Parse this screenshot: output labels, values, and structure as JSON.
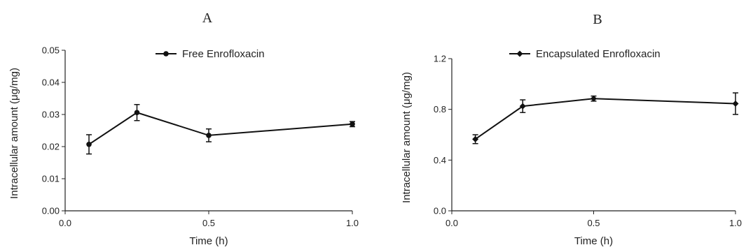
{
  "chart_data": [
    {
      "type": "line",
      "panel": "A",
      "xlabel": "Time (h)",
      "ylabel": "Intracellular amount (μg/mg)",
      "xlim": [
        0.0,
        1.0
      ],
      "ylim": [
        0.0,
        0.05
      ],
      "xticks": [
        "0.0",
        "0.5",
        "1.0"
      ],
      "yticks": [
        "0.00",
        "0.01",
        "0.02",
        "0.03",
        "0.04",
        "0.05"
      ],
      "grid": false,
      "legend_position": "top",
      "series": [
        {
          "name": "Free Enrofloxacin",
          "marker": "circle",
          "x": [
            0.083,
            0.25,
            0.5,
            1.0
          ],
          "y": [
            0.0207,
            0.0306,
            0.0235,
            0.027
          ],
          "error": [
            0.003,
            0.0025,
            0.002,
            0.0008
          ]
        }
      ]
    },
    {
      "type": "line",
      "panel": "B",
      "xlabel": "Time (h)",
      "ylabel": "Intracellular amount (μg/mg)",
      "xlim": [
        0.0,
        1.0
      ],
      "ylim": [
        0.0,
        1.2
      ],
      "xticks": [
        "0.0",
        "0.5",
        "1.0"
      ],
      "yticks": [
        "0.0",
        "0.4",
        "0.8",
        "1.2"
      ],
      "grid": false,
      "legend_position": "top",
      "series": [
        {
          "name": "Encapsulated Enrofloxacin",
          "marker": "diamond",
          "x": [
            0.083,
            0.25,
            0.5,
            1.0
          ],
          "y": [
            0.565,
            0.825,
            0.885,
            0.845
          ],
          "error": [
            0.035,
            0.05,
            0.02,
            0.085
          ]
        }
      ]
    }
  ]
}
